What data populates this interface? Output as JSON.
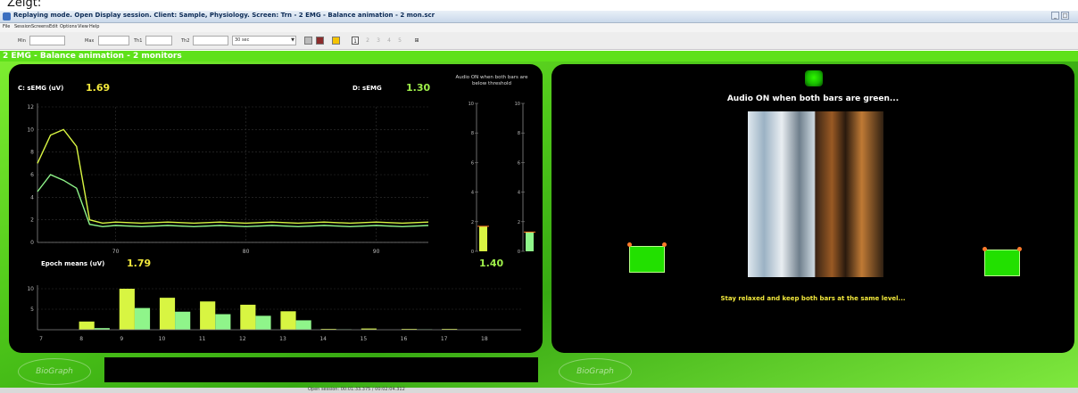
{
  "caption": "Zeigt:",
  "window": {
    "title": "Replaying mode. Open Display session. Client: Sample, Physiology. Screen: Trn - 2 EMG - Balance animation - 2 mon.scr"
  },
  "menu": [
    "File",
    "Session",
    "Screens",
    "Edit",
    "Options",
    "View",
    "Help"
  ],
  "toolbar": {
    "min_label": "Min",
    "max_label": "Max",
    "th1_label": "Th1",
    "th2_label": "Th2",
    "time_value": "30 sec",
    "pages": [
      "1",
      "2",
      "3",
      "4",
      "5"
    ]
  },
  "screen_title": "2 EMG - Balance animation - 2 monitors",
  "left": {
    "c_label": "C: sEMG (uV)",
    "c_value": "1.69",
    "d_label": "D: sEMG",
    "d_value": "1.30",
    "audio_note": "Audio ON when both bars are below threshold",
    "epoch_label": "Epoch means (uV)",
    "epoch_value_c": "1.79",
    "epoch_value_d": "1.40"
  },
  "right": {
    "heading": "Audio ON when both bars are green...",
    "instruction": "Stay relaxed and keep both bars at the same level..."
  },
  "status": {
    "text": "Open session: 00:01:33.375 / 00:02:04.312"
  },
  "colors": {
    "accent": "#5ee11a",
    "series_c": "#d8f542",
    "series_d": "#8ff58a",
    "panel": "#000000"
  },
  "chart_data": [
    {
      "type": "line",
      "x": [
        64,
        65,
        66,
        67,
        68,
        69,
        70,
        72,
        74,
        76,
        78,
        80,
        82,
        84,
        86,
        88,
        90,
        92,
        94
      ],
      "xticks": [
        "70",
        "80",
        "90"
      ],
      "yticks": [
        "0",
        "2",
        "4",
        "6",
        "8",
        "10",
        "12"
      ],
      "ylim": [
        0,
        12
      ],
      "series": [
        {
          "color": "#d8f542",
          "values": [
            7.0,
            9.5,
            10.0,
            8.5,
            2.0,
            1.7,
            1.8,
            1.7,
            1.8,
            1.7,
            1.8,
            1.7,
            1.8,
            1.7,
            1.8,
            1.7,
            1.8,
            1.7,
            1.8
          ]
        },
        {
          "color": "#8ff58a",
          "values": [
            4.5,
            6.0,
            5.5,
            4.8,
            1.6,
            1.4,
            1.5,
            1.4,
            1.5,
            1.4,
            1.5,
            1.4,
            1.5,
            1.4,
            1.5,
            1.4,
            1.5,
            1.4,
            1.5
          ]
        }
      ]
    },
    {
      "type": "bar",
      "series": [
        {
          "color": "#ffffff",
          "values": [
            1.69
          ]
        },
        {
          "color": "#ffffff",
          "values": [
            1.3
          ]
        }
      ],
      "yticks": [
        "0",
        "2",
        "4",
        "6",
        "8",
        "10"
      ],
      "ylim": [
        0,
        10
      ]
    },
    {
      "type": "bar",
      "categories": [
        "7",
        "8",
        "9",
        "10",
        "11",
        "12",
        "13",
        "14",
        "15",
        "16",
        "17",
        "18"
      ],
      "yticks": [
        "5",
        "10"
      ],
      "ylim": [
        0,
        10
      ],
      "series": [
        {
          "color": "#d8f542",
          "values": [
            0,
            2.0,
            10.0,
            7.8,
            6.9,
            6.1,
            4.5,
            0.2,
            0.3,
            0.2,
            0.2,
            0
          ]
        },
        {
          "color": "#8ff58a",
          "values": [
            0,
            0.4,
            5.3,
            4.4,
            3.8,
            3.4,
            2.3,
            0.1,
            0,
            0.1,
            0,
            0
          ]
        }
      ]
    }
  ]
}
